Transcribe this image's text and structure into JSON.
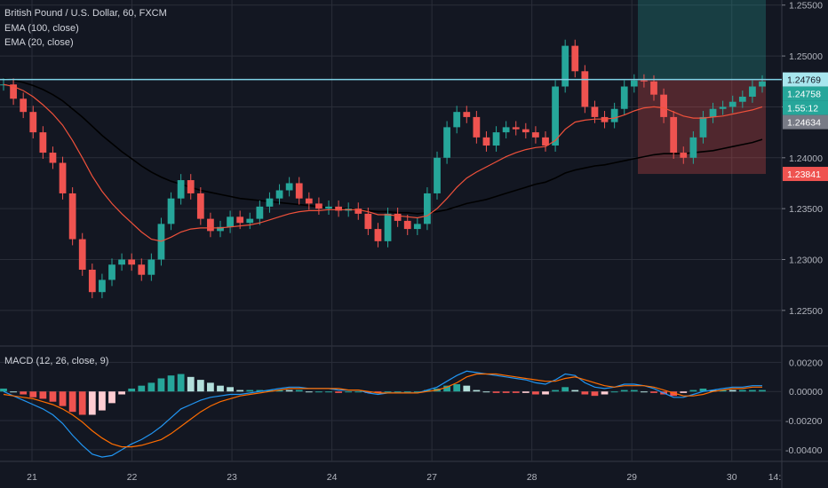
{
  "legend": {
    "symbol": "British Pound / U.S. Dollar, 60, FXCM",
    "ema100": "EMA (100, close)",
    "ema20": "EMA (20, close)",
    "macd": "MACD (12, 26, close, 9)"
  },
  "colors": {
    "background": "#131722",
    "grid": "#2a2e39",
    "up": "#26a69a",
    "down": "#ef5350",
    "ema20": "#f0513b",
    "ema100": "#000000",
    "price_line": "#7fd3e6",
    "macd": "#2196f3",
    "signal": "#ff6d00"
  },
  "chart_data": {
    "type": "candlestick",
    "y_axis": {
      "ticks": [
        "1.22500",
        "1.23000",
        "1.23500",
        "1.24000",
        "1.24500",
        "1.25000",
        "1.25500"
      ],
      "range": [
        1.2215,
        1.2555
      ]
    },
    "x_axis": {
      "ticks": [
        "21",
        "22",
        "23",
        "24",
        "27",
        "28",
        "29",
        "30",
        "14:"
      ]
    },
    "price_tags": [
      {
        "label": "1.24769",
        "value": 1.24769,
        "bg": "#a8e6ee",
        "fg": "#131722"
      },
      {
        "label": "1.24758",
        "value": 1.24758,
        "bg": "#26a69a",
        "fg": "#ffffff"
      },
      {
        "label": "1.55:12",
        "value": 1.2463,
        "bg": "#26a69a",
        "fg": "#ffffff"
      },
      {
        "label": "1.24634",
        "value": 1.24634,
        "bg": "#787b86",
        "fg": "#ffffff"
      },
      {
        "label": "1.23841",
        "value": 1.23841,
        "bg": "#ef5350",
        "fg": "#ffffff"
      }
    ],
    "position": {
      "entry": 1.24769,
      "target": 1.2555,
      "stop": 1.23841
    },
    "macd_axis": {
      "ticks": [
        "0.00200",
        "0.00000",
        "-0.00200",
        "-0.00400"
      ],
      "range": [
        -0.0048,
        0.003
      ]
    },
    "close_path": [
      1.2472,
      1.2458,
      1.2445,
      1.2425,
      1.2405,
      1.2395,
      1.2365,
      1.232,
      1.229,
      1.2268,
      1.228,
      1.2295,
      1.23,
      1.2295,
      1.2285,
      1.23,
      1.2335,
      1.236,
      1.2378,
      1.2365,
      1.234,
      1.2328,
      1.2332,
      1.2342,
      1.2336,
      1.234,
      1.2352,
      1.236,
      1.2368,
      1.2375,
      1.236,
      1.2355,
      1.235,
      1.2352,
      1.2348,
      1.235,
      1.2345,
      1.233,
      1.2318,
      1.2345,
      1.2338,
      1.233,
      1.2335,
      1.2365,
      1.24,
      1.243,
      1.2445,
      1.244,
      1.242,
      1.2412,
      1.2425,
      1.243,
      1.2428,
      1.2425,
      1.242,
      1.2412,
      1.247,
      1.251,
      1.2485,
      1.245,
      1.244,
      1.2435,
      1.2448,
      1.247,
      1.2476,
      1.2475,
      1.2462,
      1.244,
      1.2405,
      1.24,
      1.242,
      1.244,
      1.2448,
      1.245,
      1.2455,
      1.246,
      1.247,
      1.2475
    ],
    "ema20": [
      1.2472,
      1.247,
      1.2466,
      1.246,
      1.2452,
      1.2443,
      1.2432,
      1.2417,
      1.24,
      1.2382,
      1.2367,
      1.2355,
      1.2345,
      1.2336,
      1.2327,
      1.232,
      1.2318,
      1.2322,
      1.2327,
      1.233,
      1.2331,
      1.2331,
      1.2331,
      1.2332,
      1.2333,
      1.2334,
      1.2336,
      1.2339,
      1.2342,
      1.2345,
      1.2347,
      1.2348,
      1.2348,
      1.2349,
      1.2349,
      1.2349,
      1.2349,
      1.2347,
      1.2344,
      1.2344,
      1.2343,
      1.2342,
      1.2341,
      1.2343,
      1.235,
      1.236,
      1.2371,
      1.238,
      1.2386,
      1.2391,
      1.2396,
      1.2401,
      1.2405,
      1.2408,
      1.241,
      1.2411,
      1.2417,
      1.2428,
      1.2435,
      1.2437,
      1.2438,
      1.2438,
      1.2439,
      1.2442,
      1.2446,
      1.2449,
      1.245,
      1.2449,
      1.2445,
      1.2441,
      1.2439,
      1.2439,
      1.244,
      1.2441,
      1.2443,
      1.2445,
      1.2447,
      1.245
    ],
    "ema100": [
      1.2478,
      1.2476,
      1.2474,
      1.2471,
      1.2467,
      1.2462,
      1.2456,
      1.2448,
      1.244,
      1.2431,
      1.2422,
      1.2414,
      1.2406,
      1.2399,
      1.2392,
      1.2386,
      1.2381,
      1.2377,
      1.2374,
      1.2371,
      1.2368,
      1.2366,
      1.2364,
      1.2362,
      1.236,
      1.2359,
      1.2358,
      1.2357,
      1.2356,
      1.2355,
      1.2354,
      1.2353,
      1.2352,
      1.2351,
      1.235,
      1.235,
      1.2349,
      1.2348,
      1.2347,
      1.2347,
      1.2346,
      1.2346,
      1.2345,
      1.2346,
      1.2347,
      1.2349,
      1.2352,
      1.2355,
      1.2357,
      1.2359,
      1.2362,
      1.2365,
      1.2368,
      1.2371,
      1.2374,
      1.2376,
      1.238,
      1.2385,
      1.2388,
      1.239,
      1.2392,
      1.2393,
      1.2395,
      1.2397,
      1.2399,
      1.2401,
      1.2403,
      1.2404,
      1.2404,
      1.2404,
      1.2405,
      1.2406,
      1.2407,
      1.2409,
      1.2411,
      1.2413,
      1.2415,
      1.2418
    ],
    "macd_line": [
      0.0,
      -0.0003,
      -0.0006,
      -0.0009,
      -0.0012,
      -0.0016,
      -0.0022,
      -0.003,
      -0.0037,
      -0.0043,
      -0.0045,
      -0.0044,
      -0.004,
      -0.0036,
      -0.0033,
      -0.0029,
      -0.0024,
      -0.0018,
      -0.0012,
      -0.0009,
      -0.0006,
      -0.0004,
      -0.0003,
      -0.0002,
      -0.0002,
      -0.0001,
      0.0,
      0.0001,
      0.0002,
      0.0003,
      0.0003,
      0.0002,
      0.0002,
      0.0002,
      0.0001,
      0.0001,
      0.0001,
      -0.0001,
      -0.0002,
      -0.0001,
      -0.0001,
      -0.0001,
      -0.0001,
      0.0001,
      0.0003,
      0.0007,
      0.0011,
      0.0014,
      0.0013,
      0.0012,
      0.0011,
      0.001,
      0.0009,
      0.0008,
      0.0006,
      0.0005,
      0.0008,
      0.0012,
      0.0011,
      0.0006,
      0.0003,
      0.0002,
      0.0003,
      0.0005,
      0.0005,
      0.0004,
      0.0002,
      -0.0001,
      -0.0004,
      -0.0004,
      -0.0002,
      0.0,
      0.0001,
      0.0002,
      0.0003,
      0.0003,
      0.0004,
      0.0004
    ],
    "signal_line": [
      -0.0002,
      -0.0003,
      -0.0004,
      -0.0005,
      -0.0007,
      -0.0009,
      -0.0012,
      -0.0016,
      -0.0021,
      -0.0027,
      -0.0032,
      -0.0036,
      -0.0038,
      -0.0038,
      -0.0037,
      -0.0035,
      -0.0033,
      -0.0029,
      -0.0024,
      -0.0019,
      -0.0014,
      -0.001,
      -0.0007,
      -0.0005,
      -0.0003,
      -0.0002,
      -0.0001,
      0.0,
      0.0001,
      0.0002,
      0.0002,
      0.0002,
      0.0002,
      0.0002,
      0.0002,
      0.0001,
      0.0001,
      0.0,
      -0.0001,
      -0.0001,
      -0.0001,
      -0.0001,
      -0.0001,
      0.0,
      0.0001,
      0.0003,
      0.0006,
      0.001,
      0.0012,
      0.0012,
      0.0012,
      0.0011,
      0.001,
      0.0009,
      0.0008,
      0.0007,
      0.0007,
      0.0009,
      0.001,
      0.0008,
      0.0006,
      0.0004,
      0.0003,
      0.0004,
      0.0004,
      0.0004,
      0.0003,
      0.0001,
      -0.0001,
      -0.0003,
      -0.0003,
      -0.0002,
      0.0,
      0.0001,
      0.0002,
      0.0002,
      0.0003,
      0.0003
    ]
  }
}
